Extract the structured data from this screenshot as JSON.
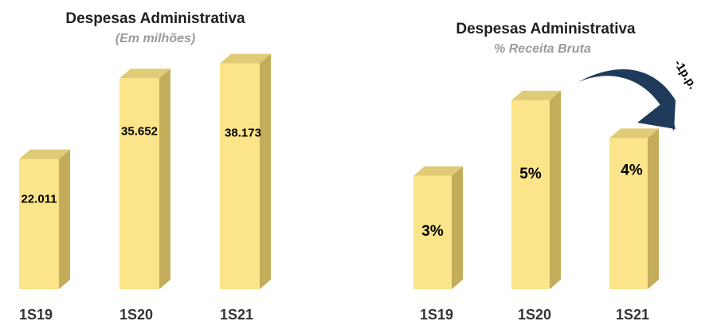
{
  "chart_data": [
    {
      "type": "bar",
      "title": "Despesas Administrativa",
      "subtitle": "(Em milhões)",
      "categories": [
        "1S19",
        "1S20",
        "1S21"
      ],
      "values": [
        22011,
        35652,
        38173
      ],
      "value_labels": [
        "22.011",
        "35.652",
        "38.173"
      ],
      "ylim": [
        0,
        40000
      ],
      "grid": false,
      "colors": {
        "front": "#FBE489",
        "side": "#C4AD5A",
        "top": "#E0CB76"
      }
    },
    {
      "type": "bar",
      "title": "Despesas Administrativa",
      "subtitle": "% Receita Bruta",
      "categories": [
        "1S19",
        "1S20",
        "1S21"
      ],
      "values": [
        3,
        5,
        4
      ],
      "value_labels": [
        "3%",
        "5%",
        "4%"
      ],
      "ylim": [
        0,
        5.8
      ],
      "grid": false,
      "annotation": {
        "text": "-1p.p.",
        "arrow_color": "#1F3A5A"
      },
      "colors": {
        "front": "#FBE489",
        "side": "#C4AD5A",
        "top": "#E0CB76"
      }
    }
  ]
}
